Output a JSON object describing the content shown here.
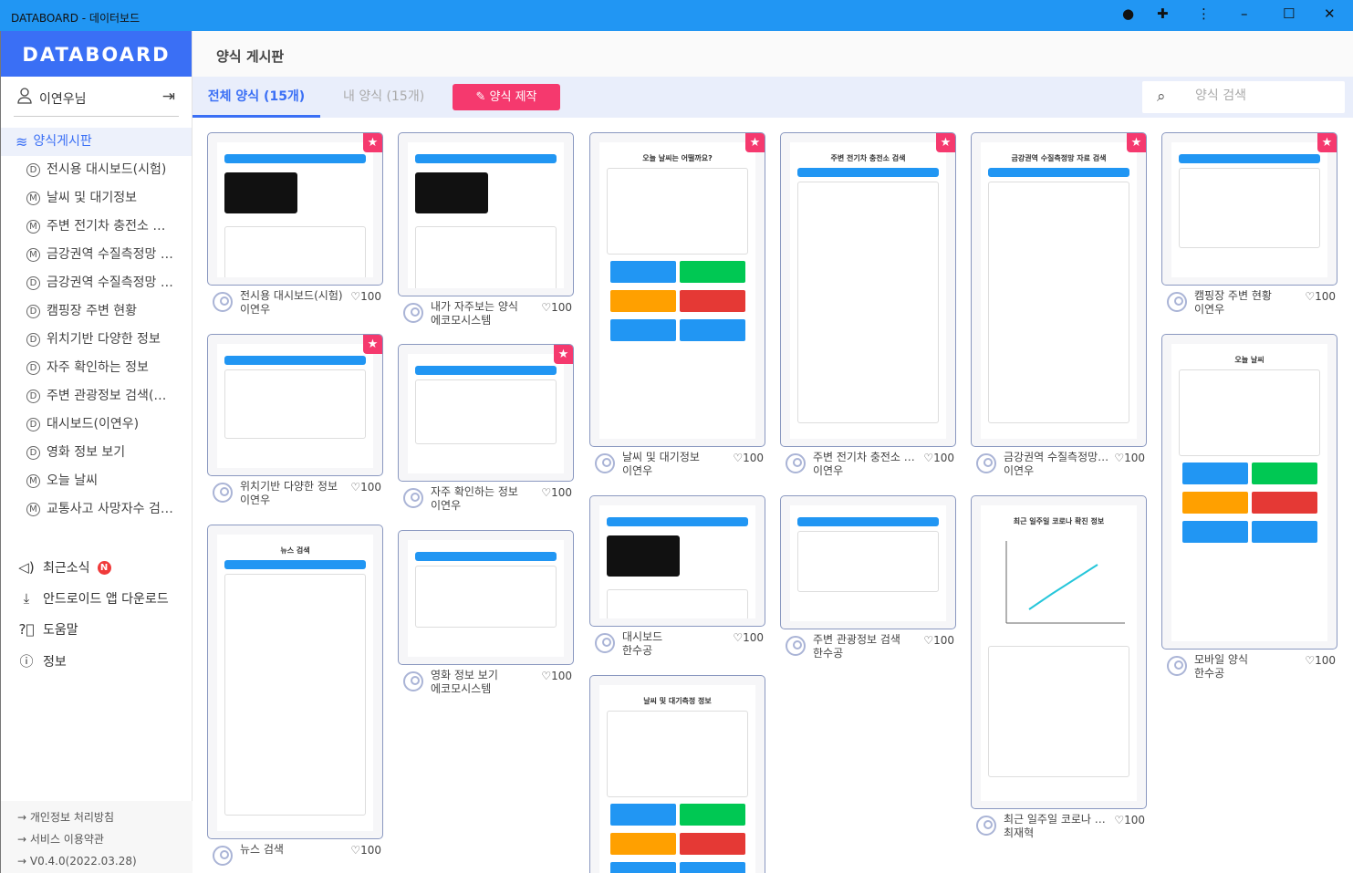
{
  "window": {
    "title": "DATABOARD - 데이터보드"
  },
  "sidebar": {
    "logo": "DATABOARD",
    "user": "이연우님",
    "active": "양식게시판",
    "items": [
      {
        "badge": "D",
        "label": "전시용 대시보드(시험)"
      },
      {
        "badge": "M",
        "label": "날씨 및 대기정보"
      },
      {
        "badge": "M",
        "label": "주변 전기차 충전소 …"
      },
      {
        "badge": "M",
        "label": "금강권역 수질측정망 …"
      },
      {
        "badge": "D",
        "label": "금강권역 수질측정망 …"
      },
      {
        "badge": "D",
        "label": "캠핑장 주변 현황"
      },
      {
        "badge": "D",
        "label": "위치기반 다양한 정보"
      },
      {
        "badge": "D",
        "label": "자주 확인하는 정보"
      },
      {
        "badge": "D",
        "label": "주변 관광정보 검색(…"
      },
      {
        "badge": "D",
        "label": "대시보드(이연우)"
      },
      {
        "badge": "D",
        "label": "영화 정보 보기"
      },
      {
        "badge": "M",
        "label": "오늘 날씨"
      },
      {
        "badge": "M",
        "label": "교통사고 사망자수 검…"
      }
    ],
    "news": "최근소식",
    "news_badge": "N",
    "android": "안드로이드 앱 다운로드",
    "help": "도움말",
    "info": "정보",
    "footer": [
      "→ 개인정보 처리방침",
      "→ 서비스 이용약관",
      "→ V0.4.0(2022.03.28)"
    ]
  },
  "header": {
    "title": "양식 게시판"
  },
  "tabs": {
    "all": "전체 양식 (15개)",
    "mine": "내 양식 (15개)",
    "create": "양식 제작",
    "search_placeholder": "양식 검색"
  },
  "accent": "#3a6ff5",
  "create_color": "#f5396e",
  "cards": [
    {
      "title": "전시용 대시보드(시험)",
      "author": "이연우",
      "likes": "♡100",
      "starred": true,
      "thumb": ""
    },
    {
      "title": "위치기반 다양한 정보",
      "author": "이연우",
      "likes": "♡100",
      "starred": true,
      "thumb": ""
    },
    {
      "title": "뉴스 검색",
      "author": "",
      "likes": "♡100",
      "starred": false,
      "thumb": "뉴스 검색"
    },
    {
      "title": "내가 자주보는 양식",
      "author": "에코모시스템",
      "likes": "♡100",
      "starred": false,
      "thumb": ""
    },
    {
      "title": "자주 확인하는 정보",
      "author": "이연우",
      "likes": "♡100",
      "starred": true,
      "thumb": ""
    },
    {
      "title": "영화 정보 보기",
      "author": "에코모시스템",
      "likes": "♡100",
      "starred": false,
      "thumb": ""
    },
    {
      "title": "날씨 및 대기정보",
      "author": "이연우",
      "likes": "♡100",
      "starred": true,
      "thumb": "오늘 날씨는 어떨까요?"
    },
    {
      "title": "대시보드",
      "author": "한수공",
      "likes": "♡100",
      "starred": false,
      "thumb": ""
    },
    {
      "title": "",
      "author": "",
      "likes": "",
      "starred": false,
      "thumb": "날씨 및 대기측정 정보"
    },
    {
      "title": "주변 전기차 충전소 …",
      "author": "이연우",
      "likes": "♡100",
      "starred": true,
      "thumb": "주변 전기차 충전소 검색"
    },
    {
      "title": "주변 관광정보 검색",
      "author": "한수공",
      "likes": "♡100",
      "starred": false,
      "thumb": ""
    },
    {
      "title": "금강권역 수질측정망…",
      "author": "이연우",
      "likes": "♡100",
      "starred": true,
      "thumb": "금강권역 수질측정망 자료 검색"
    },
    {
      "title": "최근 일주일 코로나 …",
      "author": "최재혁",
      "likes": "♡100",
      "starred": false,
      "thumb": "최근 일주일 코로나 확진 정보"
    },
    {
      "title": "캠핑장 주변 현황",
      "author": "이연우",
      "likes": "♡100",
      "starred": true,
      "thumb": ""
    },
    {
      "title": "모바일 양식",
      "author": "한수공",
      "likes": "♡100",
      "starred": false,
      "thumb": "오늘 날씨"
    }
  ]
}
